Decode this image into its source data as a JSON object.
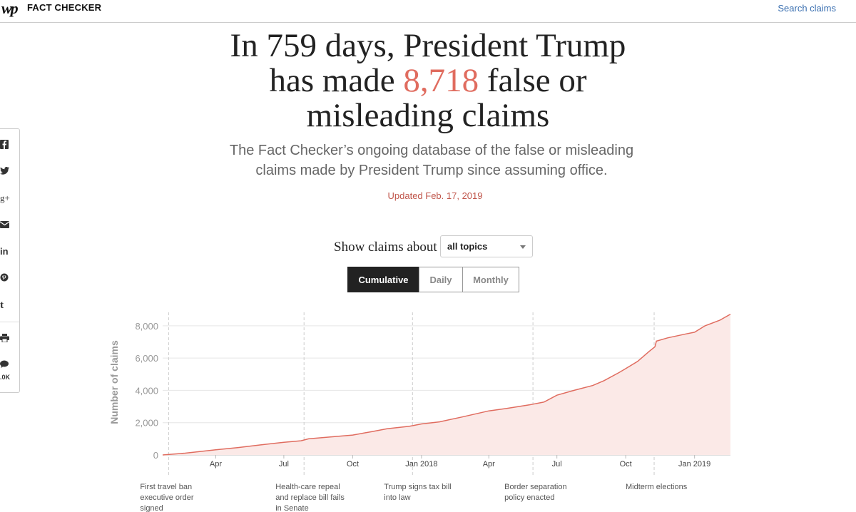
{
  "header": {
    "logo": "wp",
    "section": "FACT CHECKER",
    "search_label": "Search claims"
  },
  "headline": {
    "part1": "In 759 days, President Trump has made ",
    "count": "8,718",
    "part2": " false or misleading claims"
  },
  "dek": "The Fact Checker’s ongoing database of the false or misleading claims made by President Trump since assuming office.",
  "updated": "Updated Feb. 17, 2019",
  "share": {
    "icons": [
      "facebook-icon",
      "twitter-icon",
      "google-plus-icon",
      "email-icon",
      "linkedin-icon",
      "pinterest-icon",
      "tumblr-icon",
      "print-icon",
      "comments-icon"
    ],
    "comments_count": ".0K"
  },
  "filter": {
    "label": "Show claims about",
    "selected": "all topics"
  },
  "view_toggle": {
    "options": [
      "Cumulative",
      "Daily",
      "Monthly"
    ],
    "active": "Cumulative"
  },
  "colors": {
    "accent": "#e06c5f",
    "area_fill": "#fbe9e7",
    "updated_text": "#c0564b"
  },
  "chart_data": {
    "type": "area",
    "title": "",
    "xlabel": "",
    "ylabel": "Number of claims",
    "ylim": [
      0,
      8700
    ],
    "xlim": [
      0,
      759
    ],
    "x_unit": "days since inauguration (Jan 20, 2017)",
    "yticks": [
      {
        "value": 0,
        "label": "0"
      },
      {
        "value": 2000,
        "label": "2,000"
      },
      {
        "value": 4000,
        "label": "4,000"
      },
      {
        "value": 6000,
        "label": "6,000"
      },
      {
        "value": 8000,
        "label": "8,000"
      }
    ],
    "xticks": [
      {
        "day": 71,
        "label": "Apr"
      },
      {
        "day": 162,
        "label": "Jul"
      },
      {
        "day": 254,
        "label": "Oct"
      },
      {
        "day": 346,
        "label": "Jan 2018"
      },
      {
        "day": 436,
        "label": "Apr"
      },
      {
        "day": 527,
        "label": "Jul"
      },
      {
        "day": 619,
        "label": "Oct"
      },
      {
        "day": 711,
        "label": "Jan 2019"
      }
    ],
    "series": [
      {
        "name": "Cumulative claims",
        "points": [
          [
            0,
            0
          ],
          [
            30,
            110
          ],
          [
            71,
            320
          ],
          [
            100,
            450
          ],
          [
            130,
            620
          ],
          [
            162,
            780
          ],
          [
            185,
            880
          ],
          [
            195,
            1000
          ],
          [
            220,
            1100
          ],
          [
            254,
            1230
          ],
          [
            280,
            1450
          ],
          [
            300,
            1620
          ],
          [
            330,
            1780
          ],
          [
            346,
            1920
          ],
          [
            370,
            2050
          ],
          [
            400,
            2350
          ],
          [
            436,
            2730
          ],
          [
            460,
            2880
          ],
          [
            490,
            3100
          ],
          [
            510,
            3280
          ],
          [
            527,
            3700
          ],
          [
            550,
            4000
          ],
          [
            575,
            4300
          ],
          [
            590,
            4600
          ],
          [
            610,
            5100
          ],
          [
            619,
            5350
          ],
          [
            635,
            5800
          ],
          [
            650,
            6400
          ],
          [
            658,
            6700
          ],
          [
            660,
            7050
          ],
          [
            675,
            7250
          ],
          [
            700,
            7500
          ],
          [
            711,
            7600
          ],
          [
            725,
            8000
          ],
          [
            745,
            8350
          ],
          [
            759,
            8718
          ]
        ]
      }
    ],
    "annotations": [
      {
        "day": 8,
        "text": "First travel ban executive order signed",
        "lines": [
          "First travel ban",
          "executive order",
          "signed"
        ]
      },
      {
        "day": 189,
        "text": "Health-care repeal and replace bill fails in Senate",
        "lines": [
          "Health-care repeal",
          "and replace bill fails",
          "in Senate"
        ]
      },
      {
        "day": 334,
        "text": "Trump signs tax bill into law",
        "lines": [
          "Trump signs tax bill",
          "into law"
        ]
      },
      {
        "day": 495,
        "text": "Border separation policy enacted",
        "lines": [
          "Border separation",
          "policy enacted"
        ]
      },
      {
        "day": 657,
        "text": "Midterm elections",
        "lines": [
          "Midterm elections"
        ]
      }
    ]
  }
}
